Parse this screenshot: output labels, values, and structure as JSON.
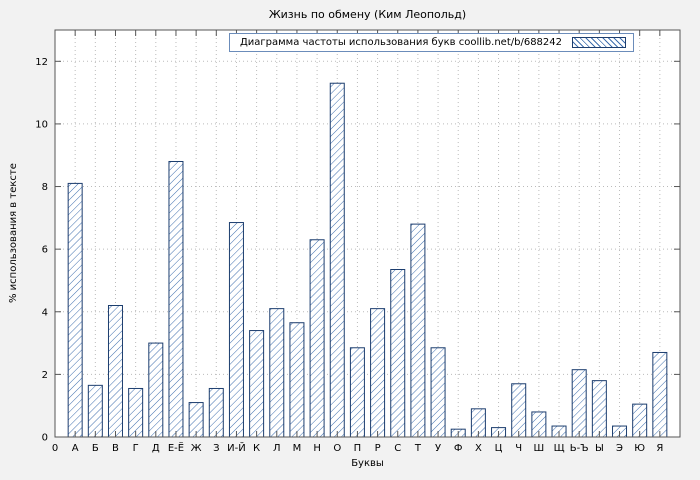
{
  "chart_data": {
    "type": "bar",
    "title": "Жизнь по обмену (Ким Леопольд)",
    "legend": "Диаграмма частоты использования букв coollib.net/b/688242",
    "xlabel": "Буквы",
    "ylabel": "% использования в тексте",
    "x_origin_label": "0",
    "categories": [
      "А",
      "Б",
      "В",
      "Г",
      "Д",
      "Е-Ё",
      "Ж",
      "З",
      "И-Й",
      "К",
      "Л",
      "М",
      "Н",
      "О",
      "П",
      "Р",
      "С",
      "Т",
      "У",
      "Ф",
      "Х",
      "Ц",
      "Ч",
      "Ш",
      "Щ",
      "Ь-Ъ",
      "Ы",
      "Э",
      "Ю",
      "Я"
    ],
    "values": [
      8.1,
      1.65,
      4.2,
      1.55,
      3.0,
      8.8,
      1.1,
      1.55,
      6.85,
      3.4,
      4.1,
      3.65,
      6.3,
      11.3,
      2.85,
      4.1,
      5.35,
      6.8,
      2.85,
      0.25,
      0.9,
      0.3,
      1.7,
      0.8,
      0.35,
      2.15,
      1.8,
      0.35,
      1.05,
      2.7
    ],
    "yticks": [
      0,
      2,
      4,
      6,
      8,
      10,
      12
    ],
    "ylim": [
      0,
      13
    ],
    "grid": true,
    "legend_position": "top-right",
    "colors": {
      "bar_hatch": "#3f6fae",
      "bar_border": "#1c3d6e",
      "grid": "#bbbbbb",
      "axis": "#555555",
      "background": "#f2f2f2",
      "plot_bg": "#ffffff"
    }
  }
}
